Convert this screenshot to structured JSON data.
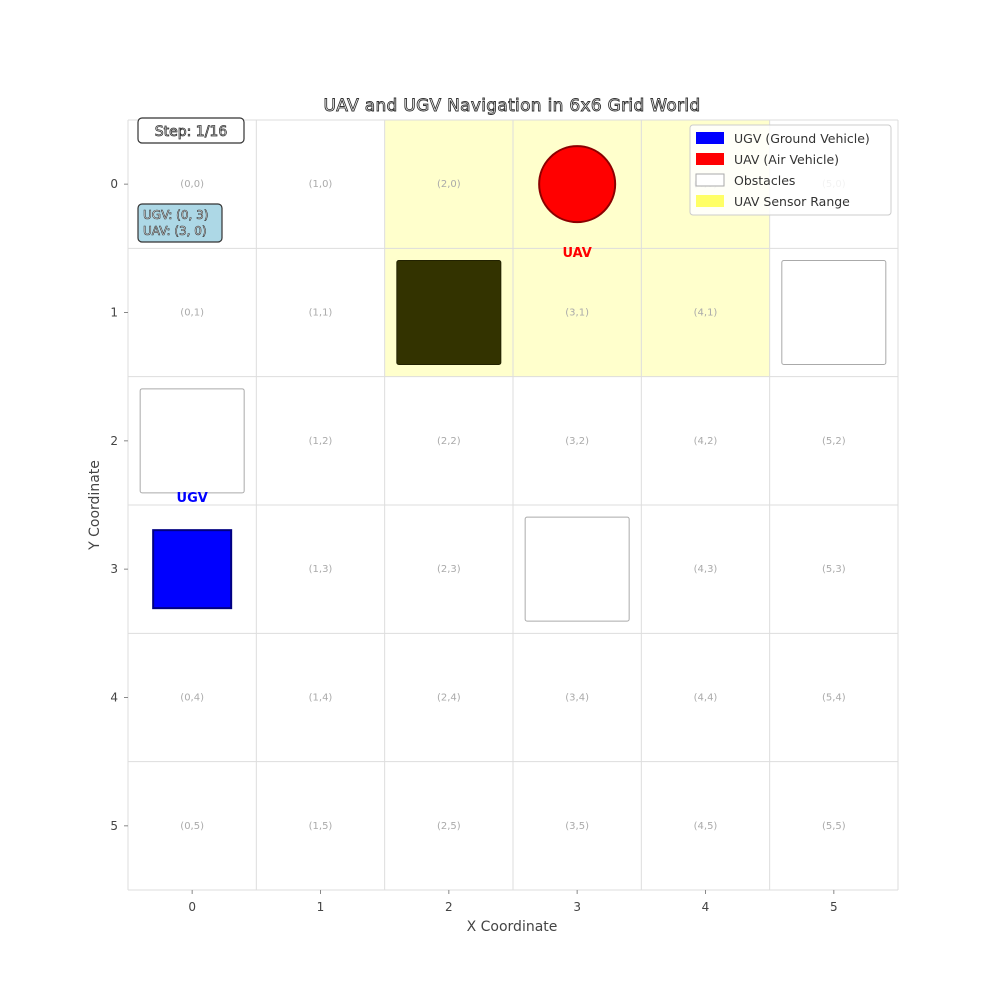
{
  "title": "UAV and UGV Navigation in 6x6 Grid World",
  "x_axis_label": "X Coordinate",
  "y_axis_label": "Y Coordinate",
  "grid_size": 6,
  "x_ticks": [
    "0",
    "1",
    "2",
    "3",
    "4",
    "5"
  ],
  "y_ticks": [
    "0",
    "1",
    "2",
    "3",
    "4",
    "5"
  ],
  "step_text": "Step: 1/16",
  "position_box": {
    "ugv_line": "UGV: (0, 3)",
    "uav_line": "UAV: (3, 0)"
  },
  "ugv": {
    "label": "UGV",
    "x": 0,
    "y": 3,
    "color": "#0000ff"
  },
  "uav": {
    "label": "UAV",
    "x": 3,
    "y": 0,
    "color": "#ff0000"
  },
  "obstacles": [
    {
      "x": 2,
      "y": 1
    },
    {
      "x": 5,
      "y": 1
    },
    {
      "x": 0,
      "y": 2
    },
    {
      "x": 3,
      "y": 3
    }
  ],
  "sensor_range": {
    "x_min": 2,
    "x_max": 4,
    "y_min": 0,
    "y_max": 1,
    "color": "#ffff99"
  },
  "legend": [
    {
      "label": "UGV (Ground Vehicle)",
      "color": "#0000ff"
    },
    {
      "label": "UAV (Air Vehicle)",
      "color": "#ff0000"
    },
    {
      "label": "Obstacles",
      "color": "#ffffff"
    },
    {
      "label": "UAV Sensor Range",
      "color": "#ffff66"
    }
  ]
}
